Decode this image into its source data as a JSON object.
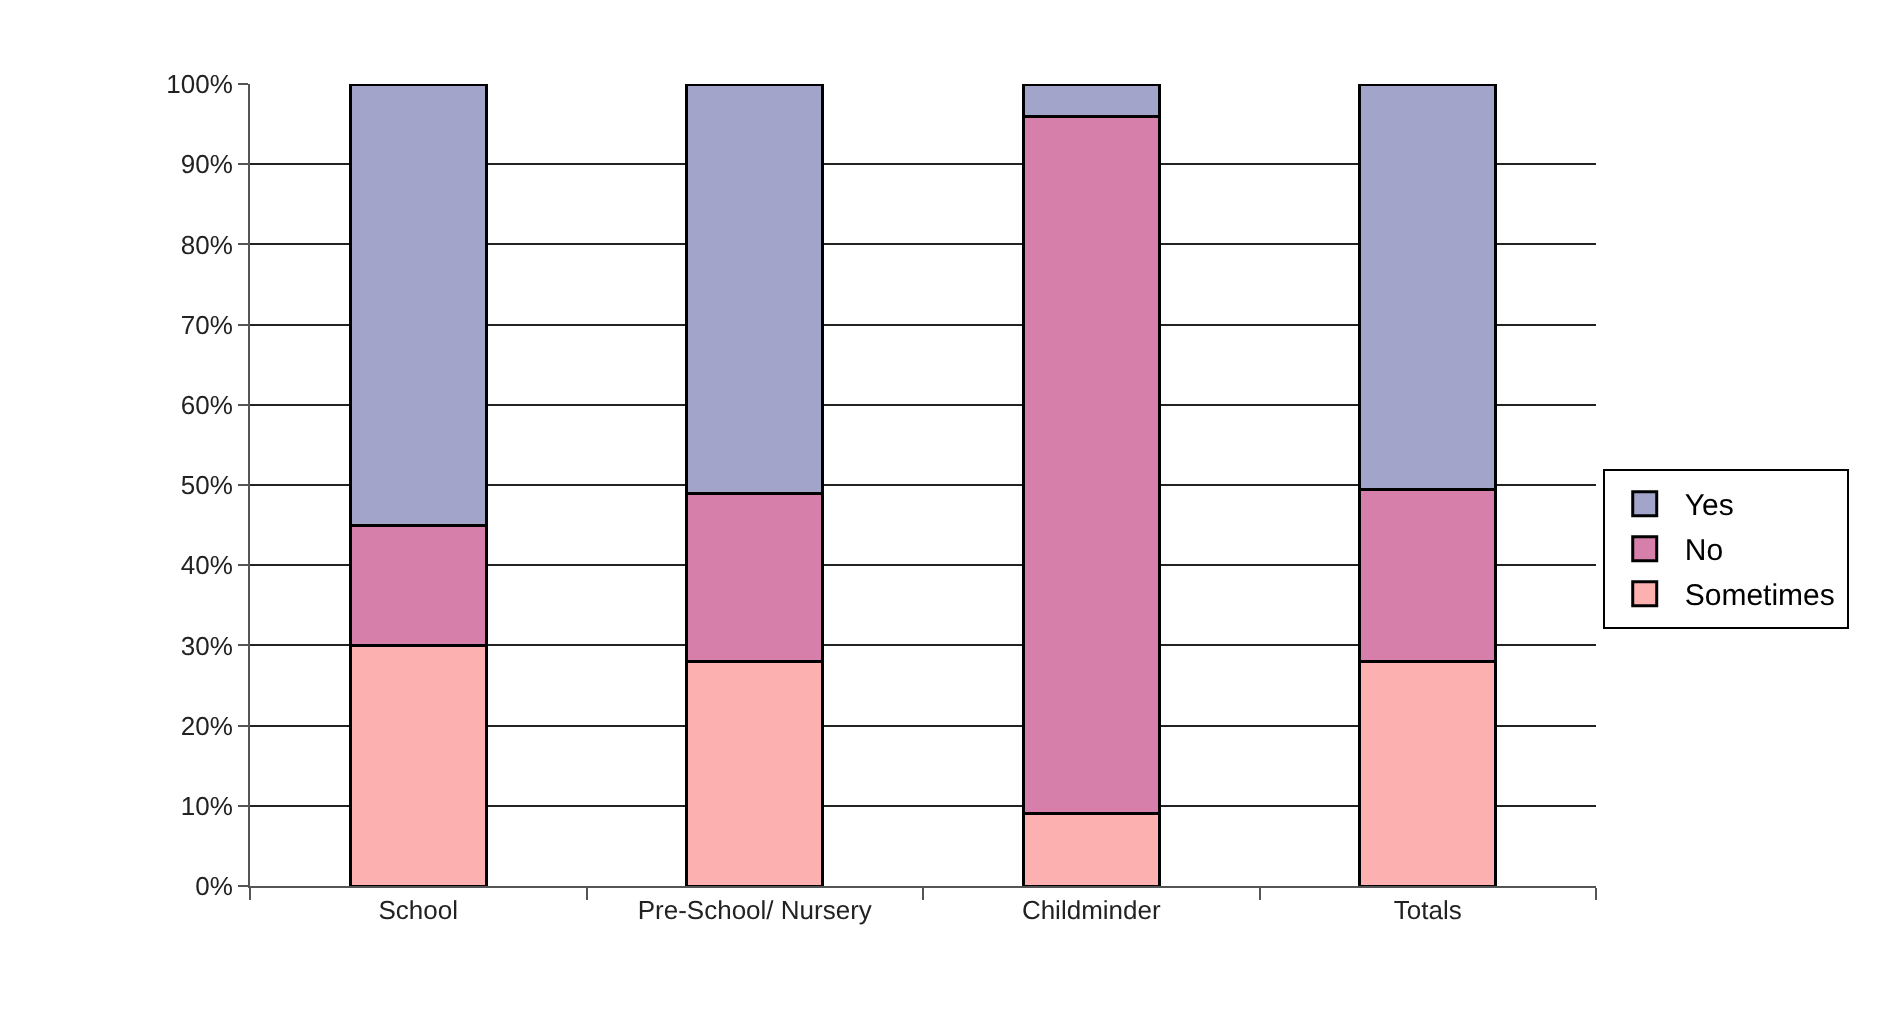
{
  "chart_data": {
    "type": "bar",
    "stacked": true,
    "categories": [
      "School",
      "Pre-School/ Nursery",
      "Childminder",
      "Totals"
    ],
    "series": [
      {
        "name": "Sometimes",
        "color": "#fdb0b0",
        "values": [
          30,
          28,
          9,
          28
        ]
      },
      {
        "name": "No",
        "color": "#d67fab",
        "values": [
          15,
          21,
          87,
          21.5
        ]
      },
      {
        "name": "Yes",
        "color": "#a3a4c9",
        "values": [
          55,
          51,
          4,
          50.5
        ]
      }
    ],
    "ylim": [
      0,
      100
    ],
    "yticks": [
      {
        "value": 0,
        "label": "0%"
      },
      {
        "value": 10,
        "label": "10%"
      },
      {
        "value": 20,
        "label": "20%"
      },
      {
        "value": 30,
        "label": "30%"
      },
      {
        "value": 40,
        "label": "40%"
      },
      {
        "value": 50,
        "label": "50%"
      },
      {
        "value": 60,
        "label": "60%"
      },
      {
        "value": 70,
        "label": "70%"
      },
      {
        "value": 80,
        "label": "80%"
      },
      {
        "value": 90,
        "label": "90%"
      },
      {
        "value": 100,
        "label": "100%"
      }
    ],
    "grid": "y",
    "legend": "right"
  }
}
